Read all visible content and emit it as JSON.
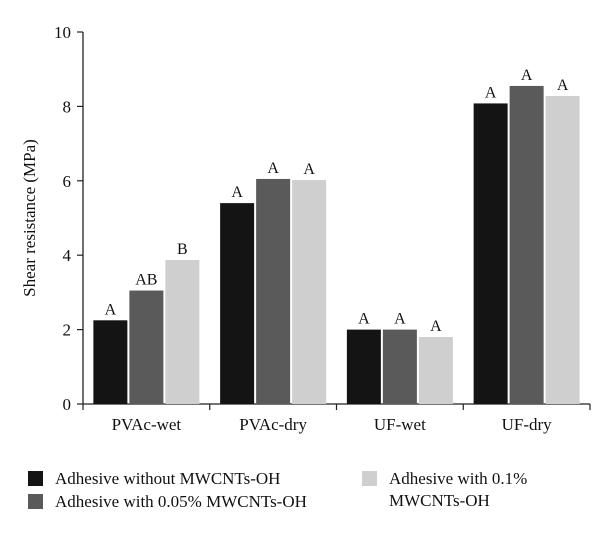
{
  "chart_data": {
    "type": "bar",
    "categories": [
      "PVAc-wet",
      "PVAc-dry",
      "UF-wet",
      "UF-dry"
    ],
    "series": [
      {
        "name": "Adhesive without MWCNTs-OH",
        "values": [
          2.25,
          5.4,
          2.0,
          8.08
        ],
        "labels": [
          "A",
          "A",
          "A",
          "A"
        ]
      },
      {
        "name": "Adhesive with 0.05% MWCNTs-OH",
        "values": [
          3.05,
          6.05,
          2.0,
          8.55
        ],
        "labels": [
          "AB",
          "A",
          "A",
          "A"
        ]
      },
      {
        "name": "Adhesive with 0.1% MWCNTs-OH",
        "values": [
          3.87,
          6.02,
          1.8,
          8.28
        ],
        "labels": [
          "B",
          "A",
          "A",
          "A"
        ]
      }
    ],
    "ylabel": "Shear resistance (MPa)",
    "xlabel": "",
    "ylim": [
      0,
      10
    ],
    "yticks": [
      0,
      2,
      4,
      6,
      8,
      10
    ],
    "grid": false,
    "legend_position": "bottom",
    "colors": [
      "#141414",
      "#5a5a5a",
      "#cfcfcf"
    ]
  }
}
